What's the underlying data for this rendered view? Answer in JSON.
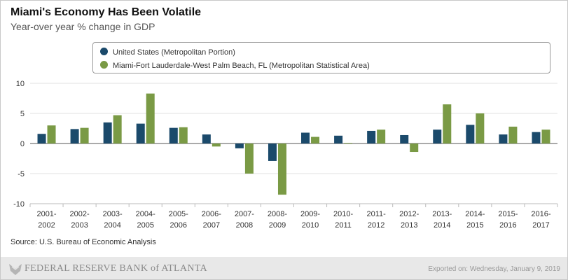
{
  "header": {
    "title": "Miami's Economy Has Been Volatile",
    "subtitle": "Year-over year % change in GDP"
  },
  "chart_data": {
    "type": "bar",
    "title": "Miami's Economy Has Been Volatile",
    "subtitle": "Year-over year % change in GDP",
    "xlabel": "",
    "ylabel": "",
    "ylim": [
      -10,
      10
    ],
    "yticks": [
      10,
      5,
      0,
      -5,
      -10
    ],
    "grid": true,
    "legend_position": "top",
    "categories": [
      [
        "2001-",
        "2002"
      ],
      [
        "2002-",
        "2003"
      ],
      [
        "2003-",
        "2004"
      ],
      [
        "2004-",
        "2005"
      ],
      [
        "2005-",
        "2006"
      ],
      [
        "2006-",
        "2007"
      ],
      [
        "2007-",
        "2008"
      ],
      [
        "2008-",
        "2009"
      ],
      [
        "2009-",
        "2010"
      ],
      [
        "2010-",
        "2011"
      ],
      [
        "2011-",
        "2012"
      ],
      [
        "2012-",
        "2013"
      ],
      [
        "2013-",
        "2014"
      ],
      [
        "2014-",
        "2015"
      ],
      [
        "2015-",
        "2016"
      ],
      [
        "2016-",
        "2017"
      ]
    ],
    "series": [
      {
        "name": "United States (Metropolitan Portion)",
        "color": "#1b4a6b",
        "values": [
          1.6,
          2.4,
          3.5,
          3.3,
          2.6,
          1.5,
          -0.8,
          -2.9,
          1.8,
          1.3,
          2.1,
          1.4,
          2.3,
          3.1,
          1.5,
          1.9
        ]
      },
      {
        "name": "Miami-Fort Lauderdale-West Palm Beach, FL (Metropolitan Statistical Area)",
        "color": "#7a9a45",
        "values": [
          3.0,
          2.6,
          4.7,
          8.3,
          2.7,
          -0.5,
          -5.0,
          -8.5,
          1.1,
          0.1,
          2.3,
          -1.4,
          6.5,
          5.0,
          2.8,
          2.3
        ]
      }
    ]
  },
  "source": "Source: U.S. Bureau of Economic Analysis",
  "footer": {
    "logo_text": "FEDERAL RESERVE BANK of ATLANTA",
    "exported": "Exported on: Wednesday, January 9, 2019"
  }
}
